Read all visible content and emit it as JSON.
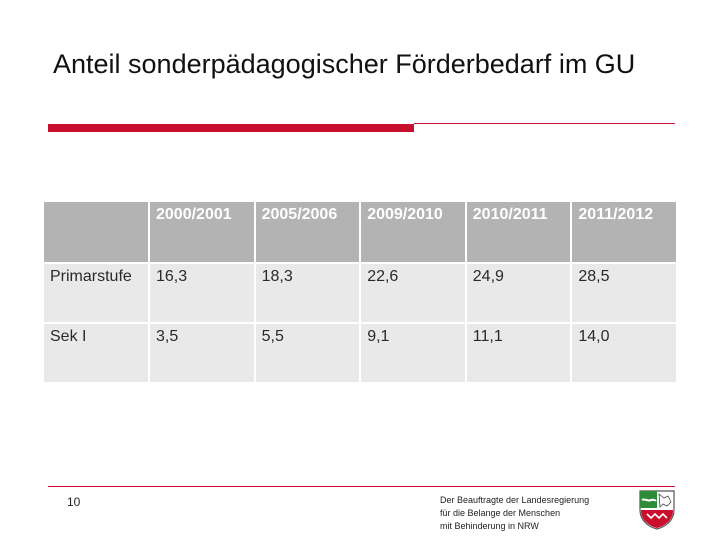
{
  "slide": {
    "title": "Anteil sonderpädagogischer Förderbedarf  im GU",
    "page_number": "10"
  },
  "table": {
    "headers": [
      "",
      "2000/2001",
      "2005/2006",
      "2009/2010",
      "2010/2011",
      "2011/2012"
    ],
    "rows": [
      [
        "Primarstufe",
        "16,3",
        "18,3",
        "22,6",
        "24,9",
        "28,5"
      ],
      [
        "Sek I",
        "3,5",
        "5,5",
        "9,1",
        "11,1",
        "14,0"
      ]
    ]
  },
  "footer": {
    "line1": "Der Beauftragte der Landesregierung",
    "line2": "für die Belange der Menschen",
    "line3": "mit Behinderung in NRW"
  },
  "colors": {
    "accent_red": "#c8102e",
    "header_gray": "#b3b3b3",
    "cell_gray": "#e9e9e9",
    "logo_green": "#2e8b3a"
  },
  "icons": {
    "logo": "nrw-coat-of-arms-icon"
  }
}
